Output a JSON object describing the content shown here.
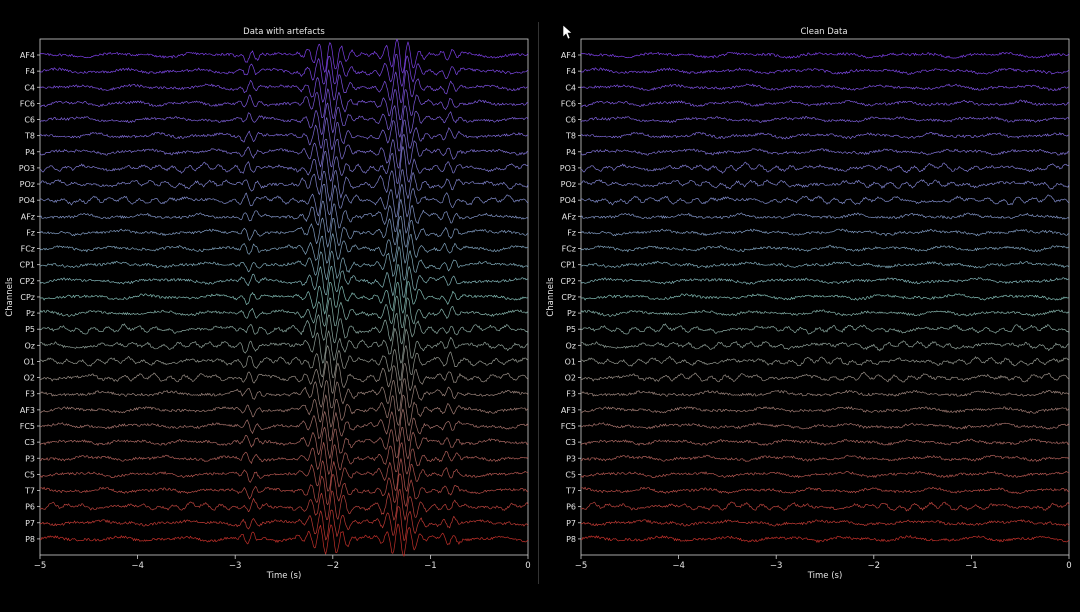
{
  "chart_data": [
    {
      "type": "line",
      "title": "Data with artefacts",
      "xlabel": "Time (s)",
      "ylabel": "Channels",
      "xlim": [
        -5,
        0
      ],
      "xticks": [
        "−5",
        "−4",
        "−3",
        "−2",
        "−1",
        "0"
      ],
      "channels": [
        "AF4",
        "F4",
        "C4",
        "FC6",
        "C6",
        "T8",
        "P4",
        "PO3",
        "POz",
        "PO4",
        "AFz",
        "Fz",
        "FCz",
        "CP1",
        "CP2",
        "CPz",
        "Pz",
        "P5",
        "Oz",
        "O1",
        "O2",
        "F3",
        "AF3",
        "FC5",
        "C3",
        "P3",
        "C5",
        "T7",
        "P6",
        "P7",
        "P8"
      ],
      "artifact_bursts": [
        {
          "center": -2.85,
          "width": 0.1,
          "amp": 0.9
        },
        {
          "center": -2.05,
          "width": 0.2,
          "amp": 2.4
        },
        {
          "center": -1.3,
          "width": 0.18,
          "amp": 2.6
        },
        {
          "center": -0.8,
          "width": 0.1,
          "amp": 0.9
        }
      ]
    },
    {
      "type": "line",
      "title": "Clean Data",
      "xlabel": "Time (s)",
      "ylabel": "Channels",
      "xlim": [
        -5,
        0
      ],
      "xticks": [
        "−5",
        "−4",
        "−3",
        "−2",
        "−1",
        "0"
      ],
      "channels": [
        "AF4",
        "F4",
        "C4",
        "FC6",
        "C6",
        "T8",
        "P4",
        "PO3",
        "POz",
        "PO4",
        "AFz",
        "Fz",
        "FCz",
        "CP1",
        "CP2",
        "CPz",
        "Pz",
        "P5",
        "Oz",
        "O1",
        "O2",
        "F3",
        "AF3",
        "FC5",
        "C3",
        "P3",
        "C5",
        "T7",
        "P6",
        "P7",
        "P8"
      ],
      "artifact_bursts": []
    }
  ],
  "colors": {
    "background": "#000000",
    "axes": "#d0d0d0",
    "trace_top": "#7b3fe4",
    "trace_mid": "#7fb8b0",
    "trace_bottom": "#c0302a"
  }
}
